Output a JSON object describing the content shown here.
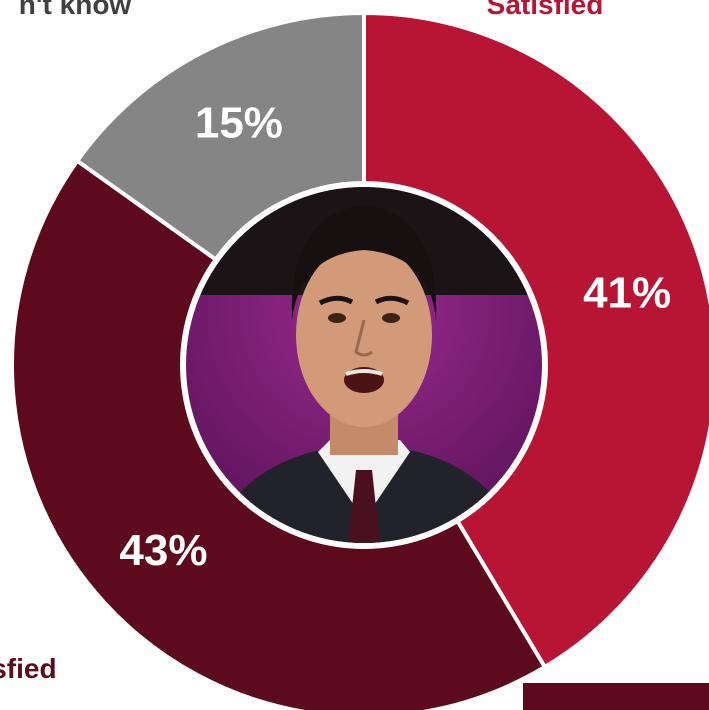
{
  "chart_data": {
    "type": "pie",
    "donut": true,
    "slices": [
      {
        "label": "Satisfied",
        "display_label": "Satisfied",
        "value": 41,
        "display": "41%",
        "color": "#b81434"
      },
      {
        "label": "Dissatisfied",
        "display_label": "isfied",
        "value": 43,
        "display": "43%",
        "color": "#5d0a1c"
      },
      {
        "label": "Don't know",
        "display_label": "n't know",
        "value": 15,
        "display": "15%",
        "color": "#858585"
      }
    ],
    "center_image": "portrait-photo",
    "legend": "none"
  },
  "colors": {
    "satisfied": "#b81434",
    "dissatisfied": "#5d0a1c",
    "dont_know": "#858585",
    "separator": "#ffffff"
  }
}
